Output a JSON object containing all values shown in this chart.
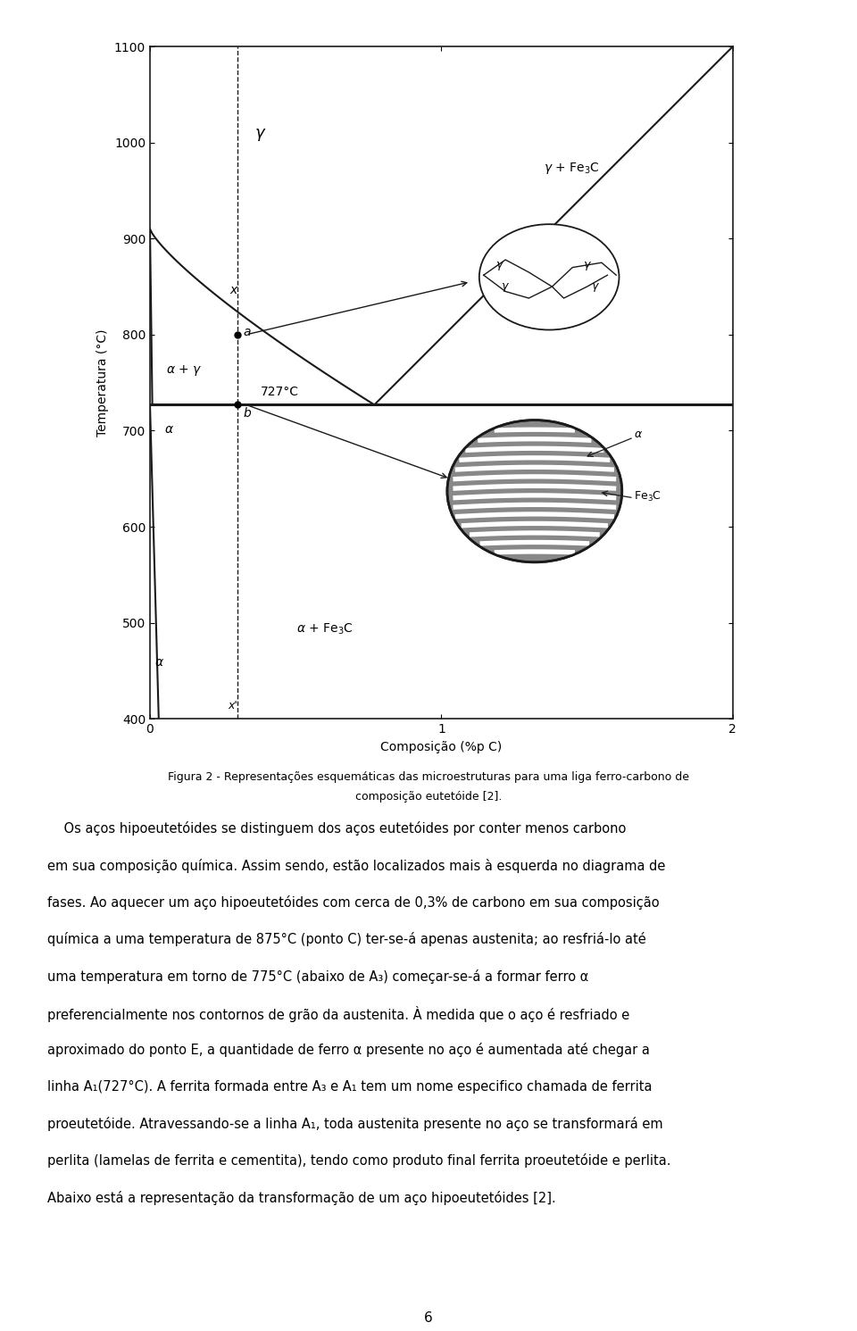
{
  "xlabel": "Composição (%p C)",
  "ylabel": "Temperatura (°C)",
  "ylim": [
    400,
    1100
  ],
  "xlim": [
    0,
    2.0
  ],
  "xticks": [
    0,
    1.0,
    2.0
  ],
  "yticks": [
    400,
    500,
    600,
    700,
    800,
    900,
    1000,
    1100
  ],
  "bg_color": "#ffffff",
  "line_color": "#1a1a1a",
  "eutectic_temp": 727,
  "eutectic_comp": 0.77,
  "dashed_x": 0.3,
  "point_a_temp": 800,
  "point_b_temp": 727,
  "fig_caption_line1": "Figura 2 - Representações esquemáticas das microestruturas para uma liga ferro-carbono de",
  "fig_caption_line2": "composição eutetóide [2].",
  "page_number": "6",
  "paragraph_lines": [
    "    Os aços hipoeutetóides se distinguem dos aços eutetóides por conter menos carbono",
    "em sua composição química. Assim sendo, estão localizados mais à esquerda no diagrama de",
    "fases. Ao aquecer um aço hipoeutetóides com cerca de 0,3% de carbono em sua composição",
    "química a uma temperatura de 875°C (ponto C) ter-se-á apenas austenita; ao resfriá-lo até",
    "uma temperatura em torno de 775°C (abaixo de A3) começar-se-á a formar ferro α",
    "preferencialmente nos contornos de grão da austenita. À medida que o aço é resfriado e",
    "aproximado do ponto E, a quantidade de ferro α presente no aço é aumentada até chegar a",
    "linha A1(727°C). A ferrita formada entre A3 e A1 tem um nome especifico chamada de ferrita",
    "proeutetóide. Atravessando-se a linha A1, toda austenita presente no aço se transformará em",
    "perlita (lamelas de ferrita e cementita), tendo como produto final ferrita proeutetóide e perlita.",
    "Abaixo está a representação da transformação de um aço hipoeutetóides [2]."
  ]
}
